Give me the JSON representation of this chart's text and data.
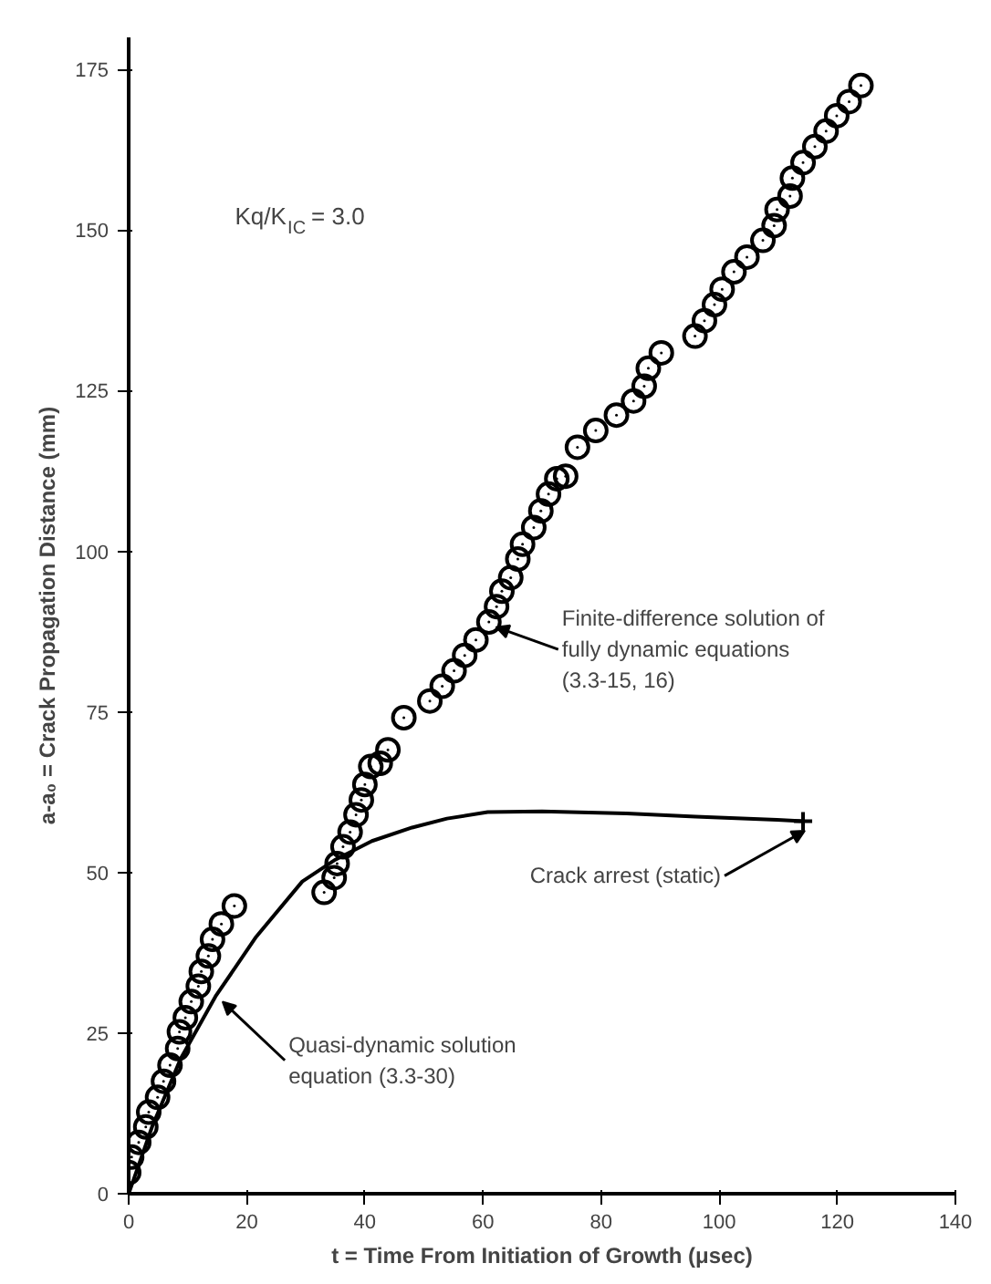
{
  "chart_data": {
    "type": "scatter",
    "xlabel": "t = Time From Initiation of Growth (μsec)",
    "ylabel": "a-a₀ = Crack Propagation Distance (mm)",
    "xlim": [
      0,
      140
    ],
    "ylim": [
      0,
      180
    ],
    "xticks": [
      0,
      20,
      40,
      60,
      80,
      100,
      120,
      140
    ],
    "yticks": [
      0,
      25,
      50,
      75,
      100,
      125,
      150,
      175
    ],
    "series": [
      {
        "marker": "circle",
        "color": "#000000",
        "x": [
          0,
          0.5,
          1.7,
          2.9,
          3.4,
          4.9,
          5.9,
          7,
          8.3,
          8.6,
          9.6,
          10.6,
          11.8,
          12.3,
          13.5,
          14.2,
          15.7,
          17.9,
          33.1,
          34.8,
          35.3,
          36.3,
          37.5,
          38.5,
          39.4,
          40,
          41,
          42.6,
          43.9,
          46.6,
          51,
          53.1,
          55.1,
          56.9,
          58.8,
          61,
          62.3,
          63.2,
          64.7,
          65.9,
          66.7,
          68.6,
          69.8,
          71.1,
          72.5,
          74,
          76,
          79.1,
          82.6,
          85.5,
          87.3,
          88,
          90.2,
          95.9,
          97.5,
          99.2,
          100.5,
          102.5,
          104.7,
          107.4,
          109.3,
          109.8,
          112,
          112.4,
          114.2,
          116.2,
          118.1,
          119.9,
          122,
          124
        ],
        "values": [
          3.3,
          5.7,
          8,
          10.4,
          12.7,
          15,
          17.5,
          20,
          22.6,
          25.2,
          27.4,
          29.9,
          32.3,
          34.6,
          37,
          39.6,
          42,
          44.8,
          46.9,
          49.2,
          51.4,
          54,
          56.3,
          59,
          61.3,
          63.7,
          66.5,
          67,
          69.1,
          74.1,
          76.7,
          79,
          81.4,
          83.8,
          86.2,
          89,
          91.4,
          93.8,
          95.9,
          98.8,
          101.1,
          103.7,
          106.3,
          108.9,
          111.3,
          111.7,
          116.2,
          118.8,
          121.2,
          123.4,
          125.7,
          128.5,
          130.9,
          133.5,
          135.9,
          138.4,
          140.8,
          143.5,
          145.8,
          148.4,
          150.7,
          153.2,
          155.3,
          158.1,
          160.5,
          163,
          165.4,
          167.8,
          170,
          172.5
        ]
      },
      {
        "type": "line",
        "marker": "none",
        "line_style": "solid",
        "color": "#000000",
        "x": [
          0,
          4,
          8.8,
          14.7,
          21.6,
          29.4,
          35,
          41.2,
          48,
          53.9,
          60.8,
          70,
          84.3,
          96,
          109.8,
          114.2
        ],
        "values": [
          0,
          10.5,
          21,
          30.7,
          40,
          48.6,
          52,
          54.9,
          57,
          58.4,
          59.4,
          59.5,
          59.2,
          58.7,
          58.2,
          58
        ]
      },
      {
        "type": "scatter",
        "marker": "cross",
        "color": "#000000",
        "x": [
          114.2
        ],
        "values": [
          58
        ]
      }
    ],
    "annotations": [
      "Kq/K$_{IC}$ = 3.0",
      {
        "text": "Quasi-dynamic solution\nequation (3.3-30)",
        "x": 14.7,
        "y": 30.7
      },
      {
        "text": "Finite-difference solution of\nfully dynamic equations\n(3.3-15, 16)",
        "x": 61,
        "y": 89
      },
      {
        "text": "Crack arrest (static)",
        "x": 114.2,
        "y": 58
      }
    ]
  }
}
